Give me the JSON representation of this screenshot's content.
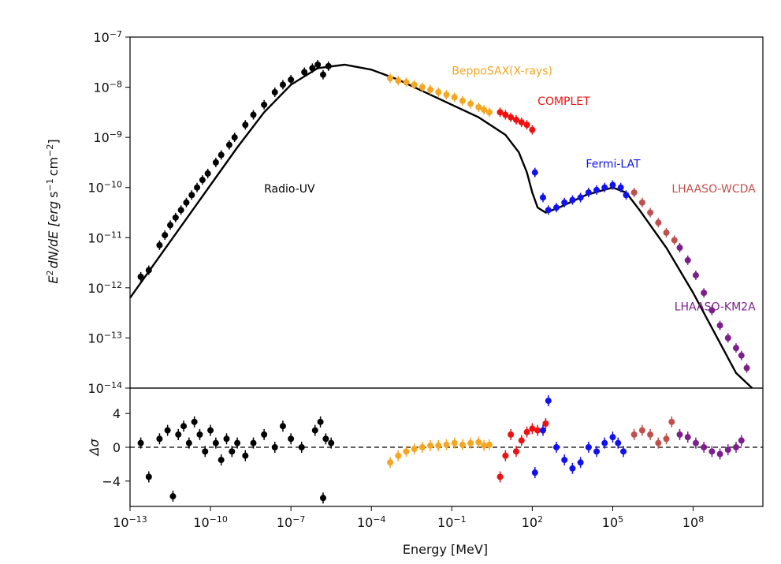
{
  "chart_data": {
    "type": "scatter",
    "title": "",
    "xlabel": "Energy [MeV]",
    "top_panel": {
      "ylabel": "E^2 dN/dE [erg s^-1 cm^-2]",
      "ylabel_parts": {
        "e": "E",
        "sup1": "2",
        "dn": "dN/dE [erg",
        "s": "s",
        "sup2": "−1",
        "cm": "cm",
        "sup3": "−2",
        "close": "]"
      },
      "x_log_range": [
        -13,
        10.6
      ],
      "y_log_range": [
        -14,
        -7
      ],
      "y_ticks": [
        {
          "base": "10",
          "exp": "−7",
          "v": -7
        },
        {
          "base": "10",
          "exp": "−8",
          "v": -8
        },
        {
          "base": "10",
          "exp": "−9",
          "v": -9
        },
        {
          "base": "10",
          "exp": "−10",
          "v": -10
        },
        {
          "base": "10",
          "exp": "−11",
          "v": -11
        },
        {
          "base": "10",
          "exp": "−12",
          "v": -12
        },
        {
          "base": "10",
          "exp": "−13",
          "v": -13
        },
        {
          "base": "10",
          "exp": "−14",
          "v": -14
        }
      ],
      "model_curve": [
        [
          -13,
          -12.2
        ],
        [
          -12,
          -11.45
        ],
        [
          -11,
          -10.7
        ],
        [
          -10,
          -9.95
        ],
        [
          -9,
          -9.2
        ],
        [
          -8,
          -8.5
        ],
        [
          -7,
          -7.95
        ],
        [
          -6,
          -7.62
        ],
        [
          -5,
          -7.55
        ],
        [
          -4,
          -7.65
        ],
        [
          -3,
          -7.85
        ],
        [
          -2,
          -8.1
        ],
        [
          -1,
          -8.35
        ],
        [
          0,
          -8.6
        ],
        [
          1,
          -8.95
        ],
        [
          1.5,
          -9.3
        ],
        [
          1.8,
          -9.7
        ],
        [
          2.0,
          -10.1
        ],
        [
          2.2,
          -10.4
        ],
        [
          2.5,
          -10.5
        ],
        [
          3,
          -10.4
        ],
        [
          4,
          -10.15
        ],
        [
          5,
          -10.0
        ],
        [
          5.5,
          -10.1
        ],
        [
          6,
          -10.45
        ],
        [
          7,
          -11.2
        ],
        [
          8,
          -12.1
        ],
        [
          9,
          -13.1
        ],
        [
          9.6,
          -13.7
        ],
        [
          10.2,
          -14.0
        ]
      ],
      "series": [
        {
          "name": "Radio-UV",
          "color": "#000000",
          "points": [
            [
              -12.6,
              -11.78
            ],
            [
              -12.3,
              -11.65
            ],
            [
              -11.9,
              -11.15
            ],
            [
              -11.7,
              -10.95
            ],
            [
              -11.5,
              -10.75
            ],
            [
              -11.3,
              -10.6
            ],
            [
              -11.1,
              -10.45
            ],
            [
              -10.9,
              -10.3
            ],
            [
              -10.7,
              -10.15
            ],
            [
              -10.5,
              -10.0
            ],
            [
              -10.3,
              -9.85
            ],
            [
              -10.1,
              -9.72
            ],
            [
              -9.8,
              -9.5
            ],
            [
              -9.6,
              -9.35
            ],
            [
              -9.3,
              -9.15
            ],
            [
              -9.1,
              -9.0
            ],
            [
              -8.7,
              -8.75
            ],
            [
              -8.4,
              -8.55
            ],
            [
              -8.0,
              -8.35
            ],
            [
              -7.6,
              -8.1
            ],
            [
              -7.3,
              -7.95
            ],
            [
              -7.0,
              -7.85
            ],
            [
              -6.5,
              -7.7
            ],
            [
              -6.2,
              -7.62
            ],
            [
              -6.0,
              -7.55
            ],
            [
              -5.8,
              -7.75
            ],
            [
              -5.6,
              -7.58
            ]
          ]
        },
        {
          "name": "BeppoSAX(X-rays)",
          "color": "#f5a623",
          "points": [
            [
              -3.3,
              -7.82
            ],
            [
              -3.0,
              -7.87
            ],
            [
              -2.7,
              -7.9
            ],
            [
              -2.4,
              -7.95
            ],
            [
              -2.1,
              -8.0
            ],
            [
              -1.8,
              -8.05
            ],
            [
              -1.5,
              -8.1
            ],
            [
              -1.2,
              -8.15
            ],
            [
              -0.9,
              -8.2
            ],
            [
              -0.6,
              -8.27
            ],
            [
              -0.3,
              -8.33
            ],
            [
              0.0,
              -8.4
            ],
            [
              0.2,
              -8.45
            ],
            [
              0.4,
              -8.5
            ]
          ]
        },
        {
          "name": "COMPLET",
          "color": "#ee1111",
          "points": [
            [
              0.8,
              -8.5
            ],
            [
              1.0,
              -8.55
            ],
            [
              1.2,
              -8.6
            ],
            [
              1.4,
              -8.65
            ],
            [
              1.6,
              -8.7
            ],
            [
              1.8,
              -8.75
            ],
            [
              2.0,
              -8.85
            ]
          ]
        },
        {
          "name": "Fermi-LAT",
          "color": "#1111ee",
          "points": [
            [
              2.1,
              -9.7
            ],
            [
              2.4,
              -10.2
            ],
            [
              2.6,
              -10.45
            ],
            [
              2.9,
              -10.4
            ],
            [
              3.2,
              -10.3
            ],
            [
              3.5,
              -10.25
            ],
            [
              3.8,
              -10.2
            ],
            [
              4.1,
              -10.1
            ],
            [
              4.4,
              -10.05
            ],
            [
              4.7,
              -10.0
            ],
            [
              5.0,
              -9.95
            ],
            [
              5.3,
              -10.0
            ],
            [
              5.5,
              -10.15
            ]
          ]
        },
        {
          "name": "LHAASO-WCDA",
          "color": "#c0504d",
          "points": [
            [
              5.8,
              -10.1
            ],
            [
              6.1,
              -10.3
            ],
            [
              6.4,
              -10.5
            ],
            [
              6.7,
              -10.7
            ],
            [
              7.0,
              -10.9
            ],
            [
              7.3,
              -11.05
            ]
          ]
        },
        {
          "name": "LHAASO-KM2A",
          "color": "#7b1f8a",
          "points": [
            [
              7.5,
              -11.2
            ],
            [
              7.8,
              -11.45
            ],
            [
              8.1,
              -11.75
            ],
            [
              8.4,
              -12.1
            ],
            [
              8.7,
              -12.45
            ],
            [
              9.0,
              -12.75
            ],
            [
              9.3,
              -13.0
            ],
            [
              9.6,
              -13.2
            ],
            [
              9.8,
              -13.35
            ],
            [
              10.0,
              -13.6
            ]
          ]
        }
      ],
      "annotations": [
        {
          "text": "Radio-UV",
          "color": "#000000",
          "x": -8.0,
          "y": -10.1
        },
        {
          "text": "BeppoSAX(X-rays)",
          "color": "#f5a623",
          "x": -1.0,
          "y": -7.75
        },
        {
          "text": "COMPLET",
          "color": "#ee1111",
          "x": 2.2,
          "y": -8.35
        },
        {
          "text": "Fermi-LAT",
          "color": "#1111ee",
          "x": 4.0,
          "y": -9.6
        },
        {
          "text": "LHAASO-WCDA",
          "color": "#c0504d",
          "x": 7.2,
          "y": -10.1
        },
        {
          "text": "LHAASO-KM2A",
          "color": "#7b1f8a",
          "x": 7.3,
          "y": -12.45
        }
      ]
    },
    "residual_panel": {
      "ylabel": "Δσ",
      "y_range": [
        -7,
        7
      ],
      "y_ticks": [
        {
          "label": "4",
          "v": 4
        },
        {
          "label": "0",
          "v": 0
        },
        {
          "label": "−4",
          "v": -4
        }
      ],
      "zero_line": true,
      "series": [
        {
          "name": "Radio-UV",
          "color": "#000000",
          "points": [
            [
              -12.6,
              0.5
            ],
            [
              -12.3,
              -3.5
            ],
            [
              -11.9,
              1.0
            ],
            [
              -11.6,
              2.0
            ],
            [
              -11.4,
              -5.8
            ],
            [
              -11.2,
              1.5
            ],
            [
              -11.0,
              2.5
            ],
            [
              -10.8,
              0.5
            ],
            [
              -10.6,
              3.0
            ],
            [
              -10.4,
              1.5
            ],
            [
              -10.2,
              -0.5
            ],
            [
              -10.0,
              2.0
            ],
            [
              -9.8,
              0.5
            ],
            [
              -9.6,
              -1.5
            ],
            [
              -9.4,
              1.0
            ],
            [
              -9.2,
              -0.5
            ],
            [
              -9.0,
              0.5
            ],
            [
              -8.7,
              -1.0
            ],
            [
              -8.4,
              0.5
            ],
            [
              -8.0,
              1.5
            ],
            [
              -7.6,
              0.0
            ],
            [
              -7.3,
              2.5
            ],
            [
              -7.0,
              1.0
            ],
            [
              -6.6,
              0.0
            ],
            [
              -6.1,
              2.0
            ],
            [
              -5.9,
              3.0
            ],
            [
              -5.8,
              -6.0
            ],
            [
              -5.7,
              1.0
            ],
            [
              -5.5,
              0.5
            ]
          ]
        },
        {
          "name": "BeppoSAX(X-rays)",
          "color": "#f5a623",
          "points": [
            [
              -3.3,
              -1.8
            ],
            [
              -3.0,
              -1.0
            ],
            [
              -2.7,
              -0.5
            ],
            [
              -2.4,
              -0.2
            ],
            [
              -2.1,
              0.0
            ],
            [
              -1.8,
              0.2
            ],
            [
              -1.5,
              0.2
            ],
            [
              -1.2,
              0.3
            ],
            [
              -0.9,
              0.5
            ],
            [
              -0.6,
              0.3
            ],
            [
              -0.3,
              0.5
            ],
            [
              0.0,
              0.6
            ],
            [
              0.2,
              0.2
            ],
            [
              0.4,
              0.3
            ]
          ]
        },
        {
          "name": "COMPLET",
          "color": "#ee1111",
          "points": [
            [
              0.8,
              -3.5
            ],
            [
              1.0,
              -1.0
            ],
            [
              1.2,
              1.5
            ],
            [
              1.4,
              -0.5
            ],
            [
              1.6,
              0.8
            ],
            [
              1.8,
              1.8
            ],
            [
              2.0,
              2.2
            ],
            [
              2.2,
              2.0
            ],
            [
              2.5,
              2.8
            ]
          ]
        },
        {
          "name": "Fermi-LAT",
          "color": "#1111ee",
          "points": [
            [
              2.1,
              -3.0
            ],
            [
              2.4,
              2.0
            ],
            [
              2.6,
              5.5
            ],
            [
              2.9,
              0.0
            ],
            [
              3.2,
              -1.5
            ],
            [
              3.5,
              -2.5
            ],
            [
              3.8,
              -1.8
            ],
            [
              4.1,
              0.0
            ],
            [
              4.4,
              -0.5
            ],
            [
              4.7,
              0.5
            ],
            [
              5.0,
              1.2
            ],
            [
              5.2,
              0.5
            ],
            [
              5.4,
              -0.5
            ]
          ]
        },
        {
          "name": "LHAASO-WCDA",
          "color": "#c0504d",
          "points": [
            [
              5.8,
              1.5
            ],
            [
              6.1,
              2.0
            ],
            [
              6.4,
              1.5
            ],
            [
              6.7,
              0.5
            ],
            [
              7.0,
              1.0
            ],
            [
              7.2,
              3.0
            ]
          ]
        },
        {
          "name": "LHAASO-KM2A",
          "color": "#7b1f8a",
          "points": [
            [
              7.5,
              1.5
            ],
            [
              7.8,
              1.2
            ],
            [
              8.1,
              0.5
            ],
            [
              8.4,
              0.0
            ],
            [
              8.7,
              -0.5
            ],
            [
              9.0,
              -0.8
            ],
            [
              9.3,
              -0.3
            ],
            [
              9.6,
              0.0
            ],
            [
              9.8,
              0.8
            ]
          ]
        }
      ]
    },
    "x_ticks": [
      {
        "base": "10",
        "exp": "−13",
        "v": -13
      },
      {
        "base": "10",
        "exp": "−10",
        "v": -10
      },
      {
        "base": "10",
        "exp": "−7",
        "v": -7
      },
      {
        "base": "10",
        "exp": "−4",
        "v": -4
      },
      {
        "base": "10",
        "exp": "−1",
        "v": -1
      },
      {
        "base": "10",
        "exp": "2",
        "v": 2
      },
      {
        "base": "10",
        "exp": "5",
        "v": 5
      },
      {
        "base": "10",
        "exp": "8",
        "v": 8
      }
    ]
  }
}
